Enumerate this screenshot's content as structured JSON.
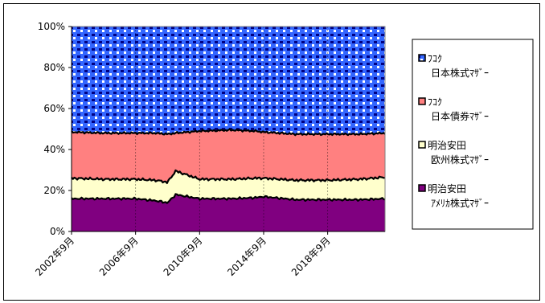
{
  "chart_data": {
    "type": "area",
    "stacked": "percent",
    "title": "",
    "xlabel": "",
    "ylabel": "",
    "ylim": [
      0,
      100
    ],
    "yticks": [
      "0%",
      "20%",
      "40%",
      "60%",
      "80%",
      "100%"
    ],
    "xtick_labels": [
      "2002年9月",
      "2006年9月",
      "2010年9月",
      "2014年9月",
      "2018年9月"
    ],
    "x_range": [
      "2002年9月",
      "2022年4月"
    ],
    "grid": "vertical",
    "legend_position": "right",
    "x": [
      "2002年9月",
      "2004年9月",
      "2006年9月",
      "2007年12月",
      "2008年9月",
      "2009年3月",
      "2010年9月",
      "2012年9月",
      "2014年3月",
      "2014年9月",
      "2016年9月",
      "2018年9月",
      "2020年9月",
      "2022年4月"
    ],
    "series": [
      {
        "name": "明治安田\nｱﾒﾘｶ株式ﾏｻﾞｰ",
        "color": "#800080",
        "values": [
          16,
          16,
          16,
          15,
          14,
          18,
          16,
          16,
          16.5,
          17,
          15.5,
          15.5,
          15.5,
          16
        ]
      },
      {
        "name": "明治安田\n欧州株式ﾏｻﾞｰ",
        "color": "#ffffcc",
        "values": [
          10,
          9.5,
          9.5,
          10,
          10,
          11.5,
          9.5,
          9.5,
          9.5,
          9,
          9.5,
          9.5,
          10,
          10.5
        ]
      },
      {
        "name": "ﾌｺｸ\n日本債券ﾏｻﾞｰ",
        "color": "#ff8080",
        "values": [
          22.5,
          22.5,
          22.5,
          23,
          23.5,
          18.5,
          23.5,
          24,
          23,
          22.5,
          22.5,
          22.5,
          22,
          21.5
        ]
      },
      {
        "name": "ﾌｺｸ\n日本株式ﾏｻﾞｰ",
        "color": "#3366ff",
        "pattern": "dotted",
        "values": [
          51.5,
          52,
          52,
          52,
          52.5,
          52,
          51,
          50.5,
          51,
          51.5,
          52.5,
          52.5,
          52.5,
          52
        ]
      }
    ]
  }
}
